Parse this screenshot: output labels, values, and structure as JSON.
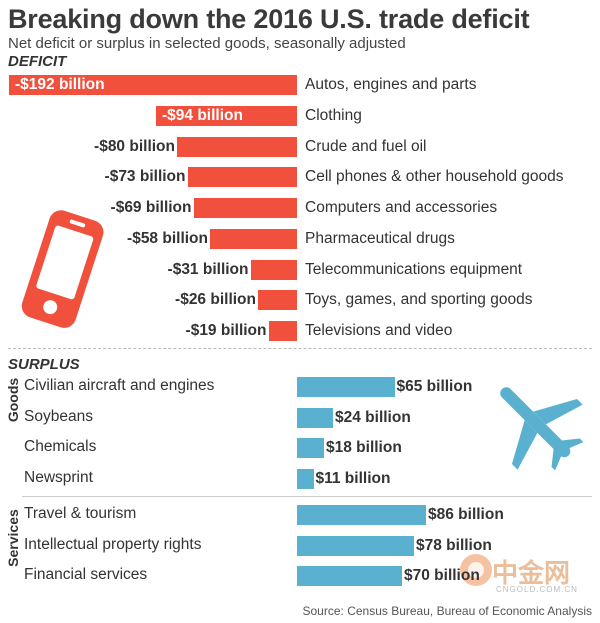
{
  "header": {
    "title": "Breaking down the 2016 U.S. trade deficit",
    "subtitle": "Net deficit or surplus in selected goods, seasonally adjusted",
    "source": "Source: Census Bureau, Bureau of Economic Analysis"
  },
  "sections": {
    "deficit": "DEFICIT",
    "surplus": "SURPLUS",
    "goods": "Goods",
    "services": "Services"
  },
  "watermark": {
    "text": "中金网",
    "url": "CNGOLD.COM.CN"
  },
  "colors": {
    "deficit": "#f0503c",
    "surplus": "#5ab1cf",
    "text": "#333333"
  },
  "icons": [
    "phone-icon",
    "airplane-icon",
    "watermark-logo-icon"
  ],
  "chart_data": {
    "type": "bar",
    "orientation": "horizontal",
    "unit": "billion",
    "deficit": [
      {
        "label": "Autos, engines and parts",
        "value": -192,
        "display": "-$192 billion"
      },
      {
        "label": "Clothing",
        "value": -94,
        "display": "-$94 billion"
      },
      {
        "label": "Crude and fuel oil",
        "value": -80,
        "display": "-$80 billion"
      },
      {
        "label": "Cell phones & other household goods",
        "value": -73,
        "display": "-$73 billion"
      },
      {
        "label": "Computers and accessories",
        "value": -69,
        "display": "-$69 billion"
      },
      {
        "label": "Pharmaceutical drugs",
        "value": -58,
        "display": "-$58 billion"
      },
      {
        "label": "Telecommunications equipment",
        "value": -31,
        "display": "-$31 billion"
      },
      {
        "label": "Toys, games, and sporting goods",
        "value": -26,
        "display": "-$26 billion"
      },
      {
        "label": "Televisions and video",
        "value": -19,
        "display": "-$19 billion"
      }
    ],
    "surplus_goods": [
      {
        "label": "Civilian aircraft and engines",
        "value": 65,
        "display": "$65 billion"
      },
      {
        "label": "Soybeans",
        "value": 24,
        "display": "$24 billion"
      },
      {
        "label": "Chemicals",
        "value": 18,
        "display": "$18 billion"
      },
      {
        "label": "Newsprint",
        "value": 11,
        "display": "$11 billion"
      }
    ],
    "surplus_services": [
      {
        "label": "Travel & tourism",
        "value": 86,
        "display": "$86 billion"
      },
      {
        "label": "Intellectual property rights",
        "value": 78,
        "display": "$78 billion"
      },
      {
        "label": "Financial services",
        "value": 70,
        "display": "$70 billion"
      }
    ]
  }
}
